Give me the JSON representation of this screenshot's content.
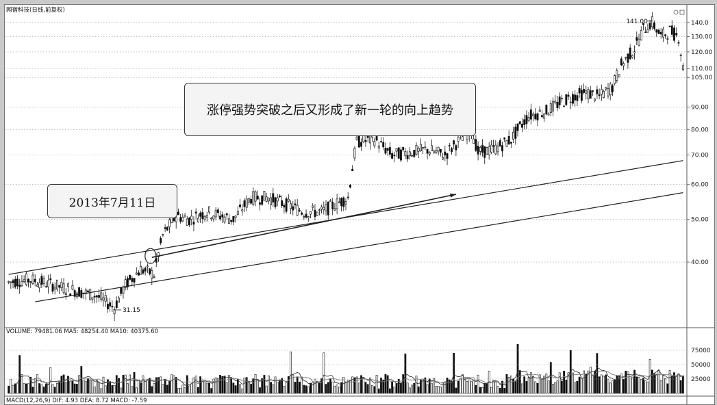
{
  "header": {
    "title": "网宿科技(日线,前复权)"
  },
  "annotations": {
    "main_note": "涨停强势突破之后又形成了新一轮的向上趋势",
    "date_note": "2013年7月11日",
    "low_marker": "31.15",
    "high_marker": "141.00"
  },
  "volume_panel": {
    "label": "VOLUME: 79481.06  MA5: 48254.40  MA10: 40375.60"
  },
  "macd_panel": {
    "label": "MACD(12,26,9)  DIF: 4.93  DEA: 8.72  MACD: -7.59"
  },
  "chart_data": [
    {
      "type": "candlestick",
      "title": "网宿科技(日线,前复权)",
      "y_ticks": [
        40,
        50,
        60,
        70,
        80,
        90,
        105,
        110,
        120,
        130,
        140
      ],
      "y_tick_labels": [
        "40.00",
        "50.00",
        "60.00",
        "70.00",
        "80.00",
        "90.00",
        "105.00",
        "110.00",
        "120.00",
        "130.00",
        "140.0"
      ],
      "y_scale": "log",
      "ylim": [
        29,
        145
      ],
      "close_path": [
        [
          0,
          36
        ],
        [
          10,
          36.5
        ],
        [
          20,
          35.5
        ],
        [
          30,
          34.5
        ],
        [
          40,
          33.5
        ],
        [
          48,
          31.5
        ],
        [
          53,
          35.5
        ],
        [
          60,
          38.5
        ],
        [
          66,
          37.5
        ],
        [
          70,
          46
        ],
        [
          76,
          51
        ],
        [
          82,
          50
        ],
        [
          90,
          52
        ],
        [
          96,
          51
        ],
        [
          102,
          50
        ],
        [
          110,
          56
        ],
        [
          118,
          56
        ],
        [
          126,
          54
        ],
        [
          134,
          52
        ],
        [
          142,
          52
        ],
        [
          148,
          54
        ],
        [
          154,
          56
        ],
        [
          158,
          75
        ],
        [
          166,
          76
        ],
        [
          174,
          70
        ],
        [
          182,
          71
        ],
        [
          190,
          72
        ],
        [
          198,
          70
        ],
        [
          206,
          77
        ],
        [
          210,
          80
        ],
        [
          213,
          71
        ],
        [
          220,
          72
        ],
        [
          228,
          76
        ],
        [
          236,
          86
        ],
        [
          244,
          88
        ],
        [
          250,
          92
        ],
        [
          256,
          95
        ],
        [
          262,
          97
        ],
        [
          268,
          95
        ],
        [
          274,
          100
        ],
        [
          278,
          112
        ],
        [
          284,
          122
        ],
        [
          288,
          135
        ],
        [
          292,
          140
        ],
        [
          296,
          130
        ],
        [
          300,
          134
        ],
        [
          304,
          130
        ],
        [
          306,
          110
        ]
      ],
      "candle_count": 307,
      "highlight": {
        "high": 141.0,
        "low": 31.15
      },
      "trendlines": [
        {
          "from": [
            0,
            37.5
          ],
          "to": [
            307,
            68
          ]
        },
        {
          "from": [
            12,
            32.5
          ],
          "to": [
            307,
            57.5
          ]
        }
      ],
      "arrow": {
        "from": [
          65,
          41
        ],
        "to": [
          203,
          57
        ]
      }
    },
    {
      "type": "bar",
      "title": "VOLUME",
      "y_ticks": [
        25000,
        50000,
        75000
      ],
      "y_tick_labels": [
        "25000",
        "50000",
        "75000"
      ],
      "ylim": [
        0,
        100000
      ],
      "bar_count": 307,
      "volume_range": [
        8000,
        80000
      ],
      "ma_series": [
        "MA5",
        "MA10"
      ]
    }
  ],
  "colors": {
    "up": "#ffffff",
    "down": "#111111",
    "grid": "#9a9a9a",
    "trend": "#222222"
  }
}
